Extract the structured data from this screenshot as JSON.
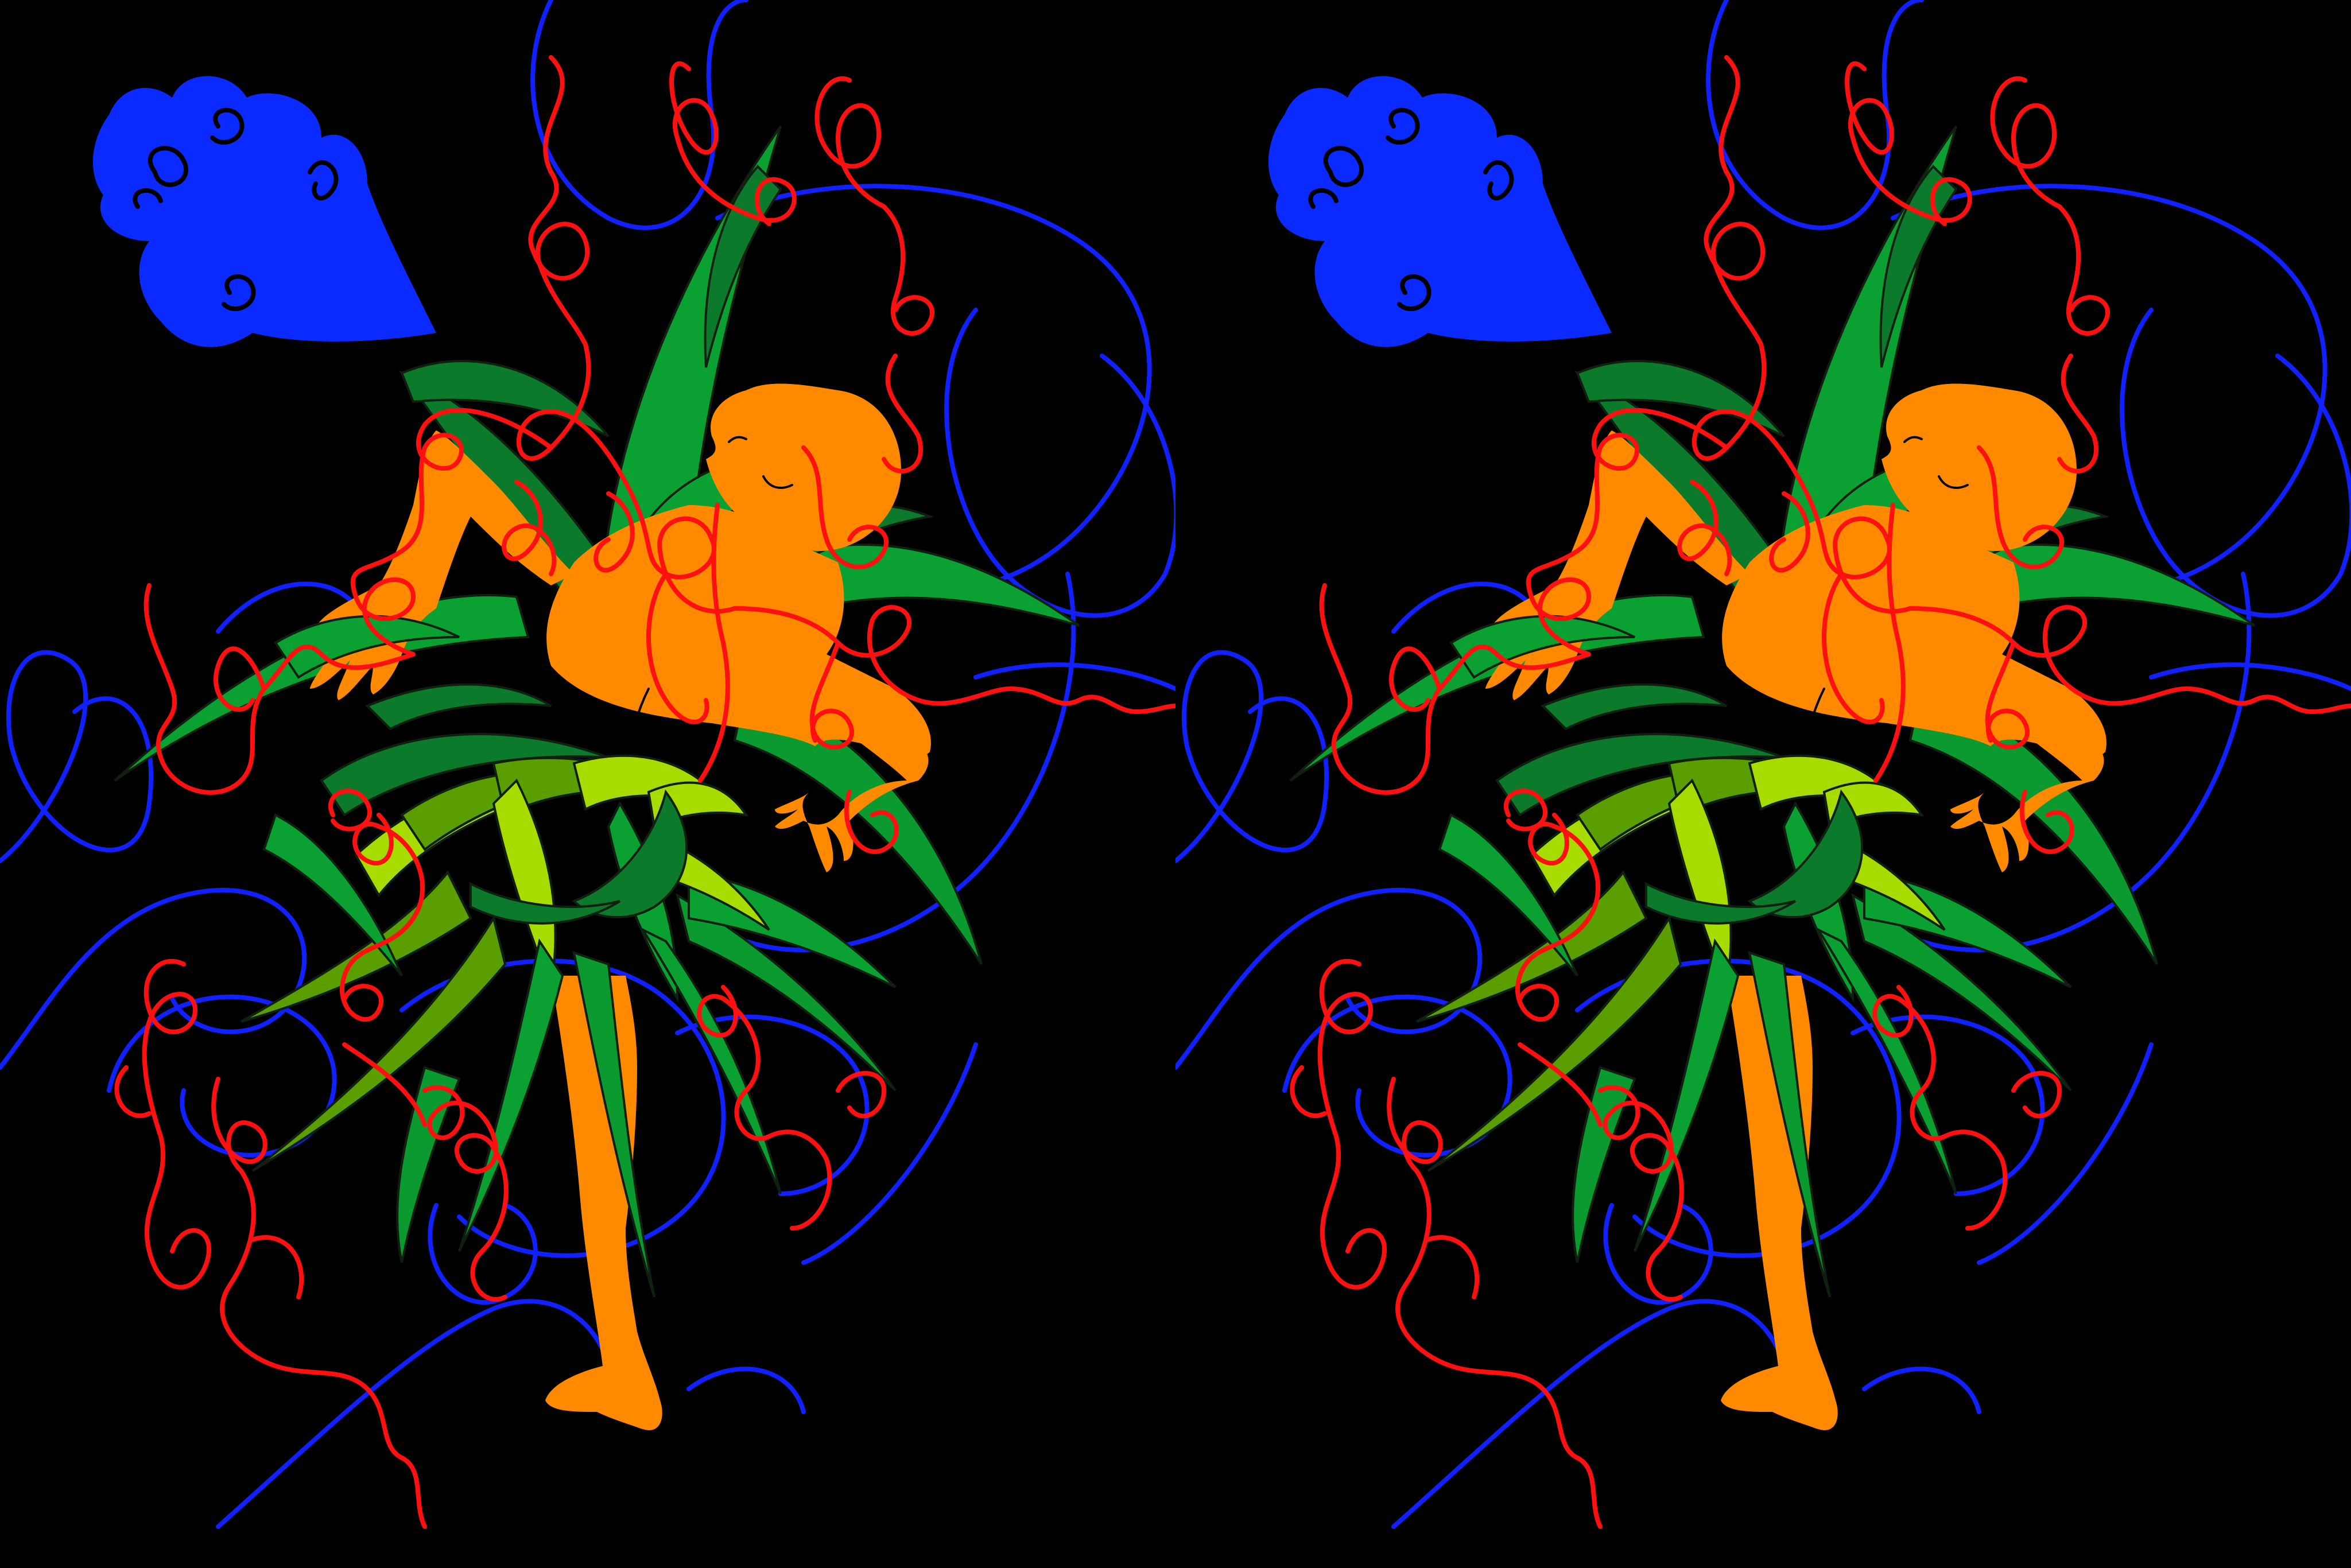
{
  "image": {
    "kind": "stereo-pair",
    "panels": [
      "left-view",
      "right-view"
    ],
    "colors": {
      "background": "#000000",
      "skin": "#ff8a00",
      "leaf_mid": "#0aa032",
      "leaf_dark": "#0b7a2a",
      "leaf_olive": "#5a9e00",
      "leaf_lime": "#a8dc00",
      "cloud": "#0a2aff",
      "blue_line": "#1020ff",
      "red_line": "#ff1010",
      "outline": "#102010"
    }
  }
}
